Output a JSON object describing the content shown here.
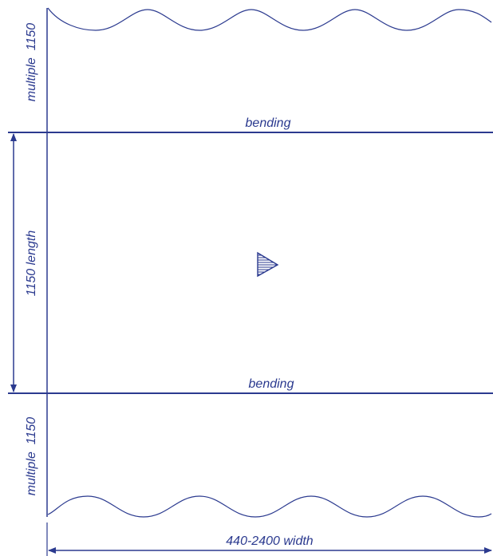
{
  "diagram": {
    "line_color": "#2b3a8f",
    "labels": {
      "bending_top": "bending",
      "bending_bottom": "bending",
      "length": "1150 length",
      "multiple_top": "multiple  1150",
      "multiple_bottom": "multiple  1150",
      "width": "440-2400 width"
    },
    "icons": {
      "center": "hatched-triangle-arrow-icon"
    }
  }
}
